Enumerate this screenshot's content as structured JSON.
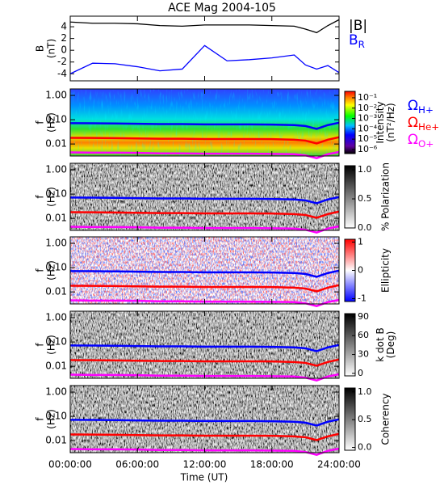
{
  "title": "ACE Mag 2004-105",
  "xlabel": "Time (UT)",
  "xlim": [
    0,
    24
  ],
  "xticks": [
    {
      "value": 0,
      "label": "00:00:00"
    },
    {
      "value": 6,
      "label": "06:00:00"
    },
    {
      "value": 12,
      "label": "12:00:00"
    },
    {
      "value": 18,
      "label": "18:00:00"
    },
    {
      "value": 24,
      "label": "24:00:00"
    }
  ],
  "chart_data": [
    {
      "type": "line",
      "ylabel": [
        "B",
        "(nT)"
      ],
      "ylim": [
        -5.2,
        5.8
      ],
      "yticks": [
        4,
        2,
        0,
        -2,
        -4
      ],
      "x": [
        0,
        2,
        4,
        6,
        8,
        10,
        12,
        14,
        16,
        18,
        20,
        21,
        22,
        23,
        24
      ],
      "series": [
        {
          "name": [
            "|B|"
          ],
          "color": "#000000",
          "values": [
            4.8,
            4.6,
            4.6,
            4.5,
            4.2,
            4.1,
            4.3,
            4.3,
            4.3,
            4.2,
            4.1,
            3.6,
            3.0,
            4.2,
            5.2
          ]
        },
        {
          "name": [
            "B",
            "R"
          ],
          "color": "#0000ff",
          "values": [
            -4.0,
            -2.2,
            -2.3,
            -2.8,
            -3.5,
            -3.2,
            0.8,
            -1.8,
            -1.6,
            -1.3,
            -0.8,
            -2.5,
            -3.2,
            -2.6,
            -3.8
          ]
        }
      ]
    },
    {
      "type": "spectrogram",
      "palette": "rainbow",
      "ylabel": [
        "f",
        "(Hz)"
      ],
      "log_y": true,
      "ylim": [
        0.0032,
        1.85
      ],
      "yticks": [
        {
          "value": 1,
          "label": "1.00"
        },
        {
          "value": 0.1,
          "label": "0.10"
        },
        {
          "value": 0.01,
          "label": "0.01"
        }
      ],
      "colorbar_label": [
        "Intensity",
        "(nT²/Hz)"
      ],
      "clog": true,
      "clim": [
        4e-07,
        0.42
      ],
      "cticks": [
        {
          "value": 0.1,
          "label": "10⁻¹"
        },
        {
          "value": 0.01,
          "label": "10⁻²"
        },
        {
          "value": 0.001,
          "label": "10⁻³"
        },
        {
          "value": 0.0001,
          "label": "10⁻⁴"
        },
        {
          "value": 1e-05,
          "label": "10⁻⁵"
        },
        {
          "value": 1e-06,
          "label": "10⁻⁶"
        }
      ],
      "x": [
        0,
        2,
        4,
        6,
        8,
        10,
        12,
        14,
        16,
        18,
        20,
        21,
        22,
        23,
        24
      ],
      "series": [
        {
          "name": [
            "Ω",
            "H+"
          ],
          "color": "#0000ff",
          "values": [
            0.072,
            0.071,
            0.07,
            0.068,
            0.066,
            0.066,
            0.064,
            0.064,
            0.064,
            0.063,
            0.06,
            0.055,
            0.042,
            0.06,
            0.075
          ]
        },
        {
          "name": [
            "Ω",
            "He+"
          ],
          "color": "#ff0000",
          "values": [
            0.018,
            0.0178,
            0.0175,
            0.017,
            0.0165,
            0.0165,
            0.016,
            0.016,
            0.016,
            0.0158,
            0.015,
            0.0138,
            0.0105,
            0.015,
            0.019
          ]
        },
        {
          "name": [
            "Ω",
            "O+"
          ],
          "color": "#ff00ff",
          "values": [
            0.0045,
            0.0044,
            0.0044,
            0.0043,
            0.0041,
            0.0041,
            0.004,
            0.004,
            0.004,
            0.0039,
            0.0038,
            0.0034,
            0.0026,
            0.0038,
            0.0047
          ]
        }
      ]
    },
    {
      "type": "spectrogram",
      "palette": "gray",
      "ylabel": [
        "f",
        "(Hz)"
      ],
      "log_y": true,
      "ylim": [
        0.0032,
        1.85
      ],
      "yticks": [
        {
          "value": 1,
          "label": "1.00"
        },
        {
          "value": 0.1,
          "label": "0.10"
        },
        {
          "value": 0.01,
          "label": "0.01"
        }
      ],
      "colorbar_label": [
        "% Polarization"
      ],
      "clim": [
        0,
        1.07
      ],
      "cticks": [
        {
          "value": 1,
          "label": "1.0"
        },
        {
          "value": 0.5,
          "label": "0.5"
        },
        {
          "value": 0,
          "label": "0.0"
        }
      ]
    },
    {
      "type": "spectrogram",
      "palette": "redblue",
      "ylabel": [
        "f",
        "(Hz)"
      ],
      "log_y": true,
      "ylim": [
        0.0032,
        1.85
      ],
      "yticks": [
        {
          "value": 1,
          "label": "1.00"
        },
        {
          "value": 0.1,
          "label": "0.10"
        },
        {
          "value": 0.01,
          "label": "0.01"
        }
      ],
      "colorbar_label": [
        "Ellipticity"
      ],
      "clim": [
        -1.1,
        1.1
      ],
      "cticks": [
        1,
        0,
        -1
      ]
    },
    {
      "type": "spectrogram",
      "palette": "gray",
      "ylabel": [
        "f",
        "(Hz)"
      ],
      "log_y": true,
      "ylim": [
        0.0032,
        1.85
      ],
      "yticks": [
        {
          "value": 1,
          "label": "1.00"
        },
        {
          "value": 0.1,
          "label": "0.10"
        },
        {
          "value": 0.01,
          "label": "0.01"
        }
      ],
      "colorbar_label": [
        "k dot B",
        "(Deg)"
      ],
      "clim": [
        -4,
        95
      ],
      "cticks": [
        90,
        60,
        30,
        0
      ]
    },
    {
      "type": "spectrogram",
      "palette": "gray",
      "ylabel": [
        "f",
        "(Hz)"
      ],
      "log_y": true,
      "ylim": [
        0.0032,
        1.85
      ],
      "yticks": [
        {
          "value": 1,
          "label": "1.00"
        },
        {
          "value": 0.1,
          "label": "0.10"
        },
        {
          "value": 0.01,
          "label": "0.01"
        }
      ],
      "colorbar_label": [
        "Coherency"
      ],
      "clim": [
        -0.05,
        1.07
      ],
      "cticks": [
        {
          "value": 1,
          "label": "1.0"
        },
        {
          "value": 0.5,
          "label": "0.5"
        },
        {
          "value": 0,
          "label": "0.0"
        }
      ]
    }
  ]
}
